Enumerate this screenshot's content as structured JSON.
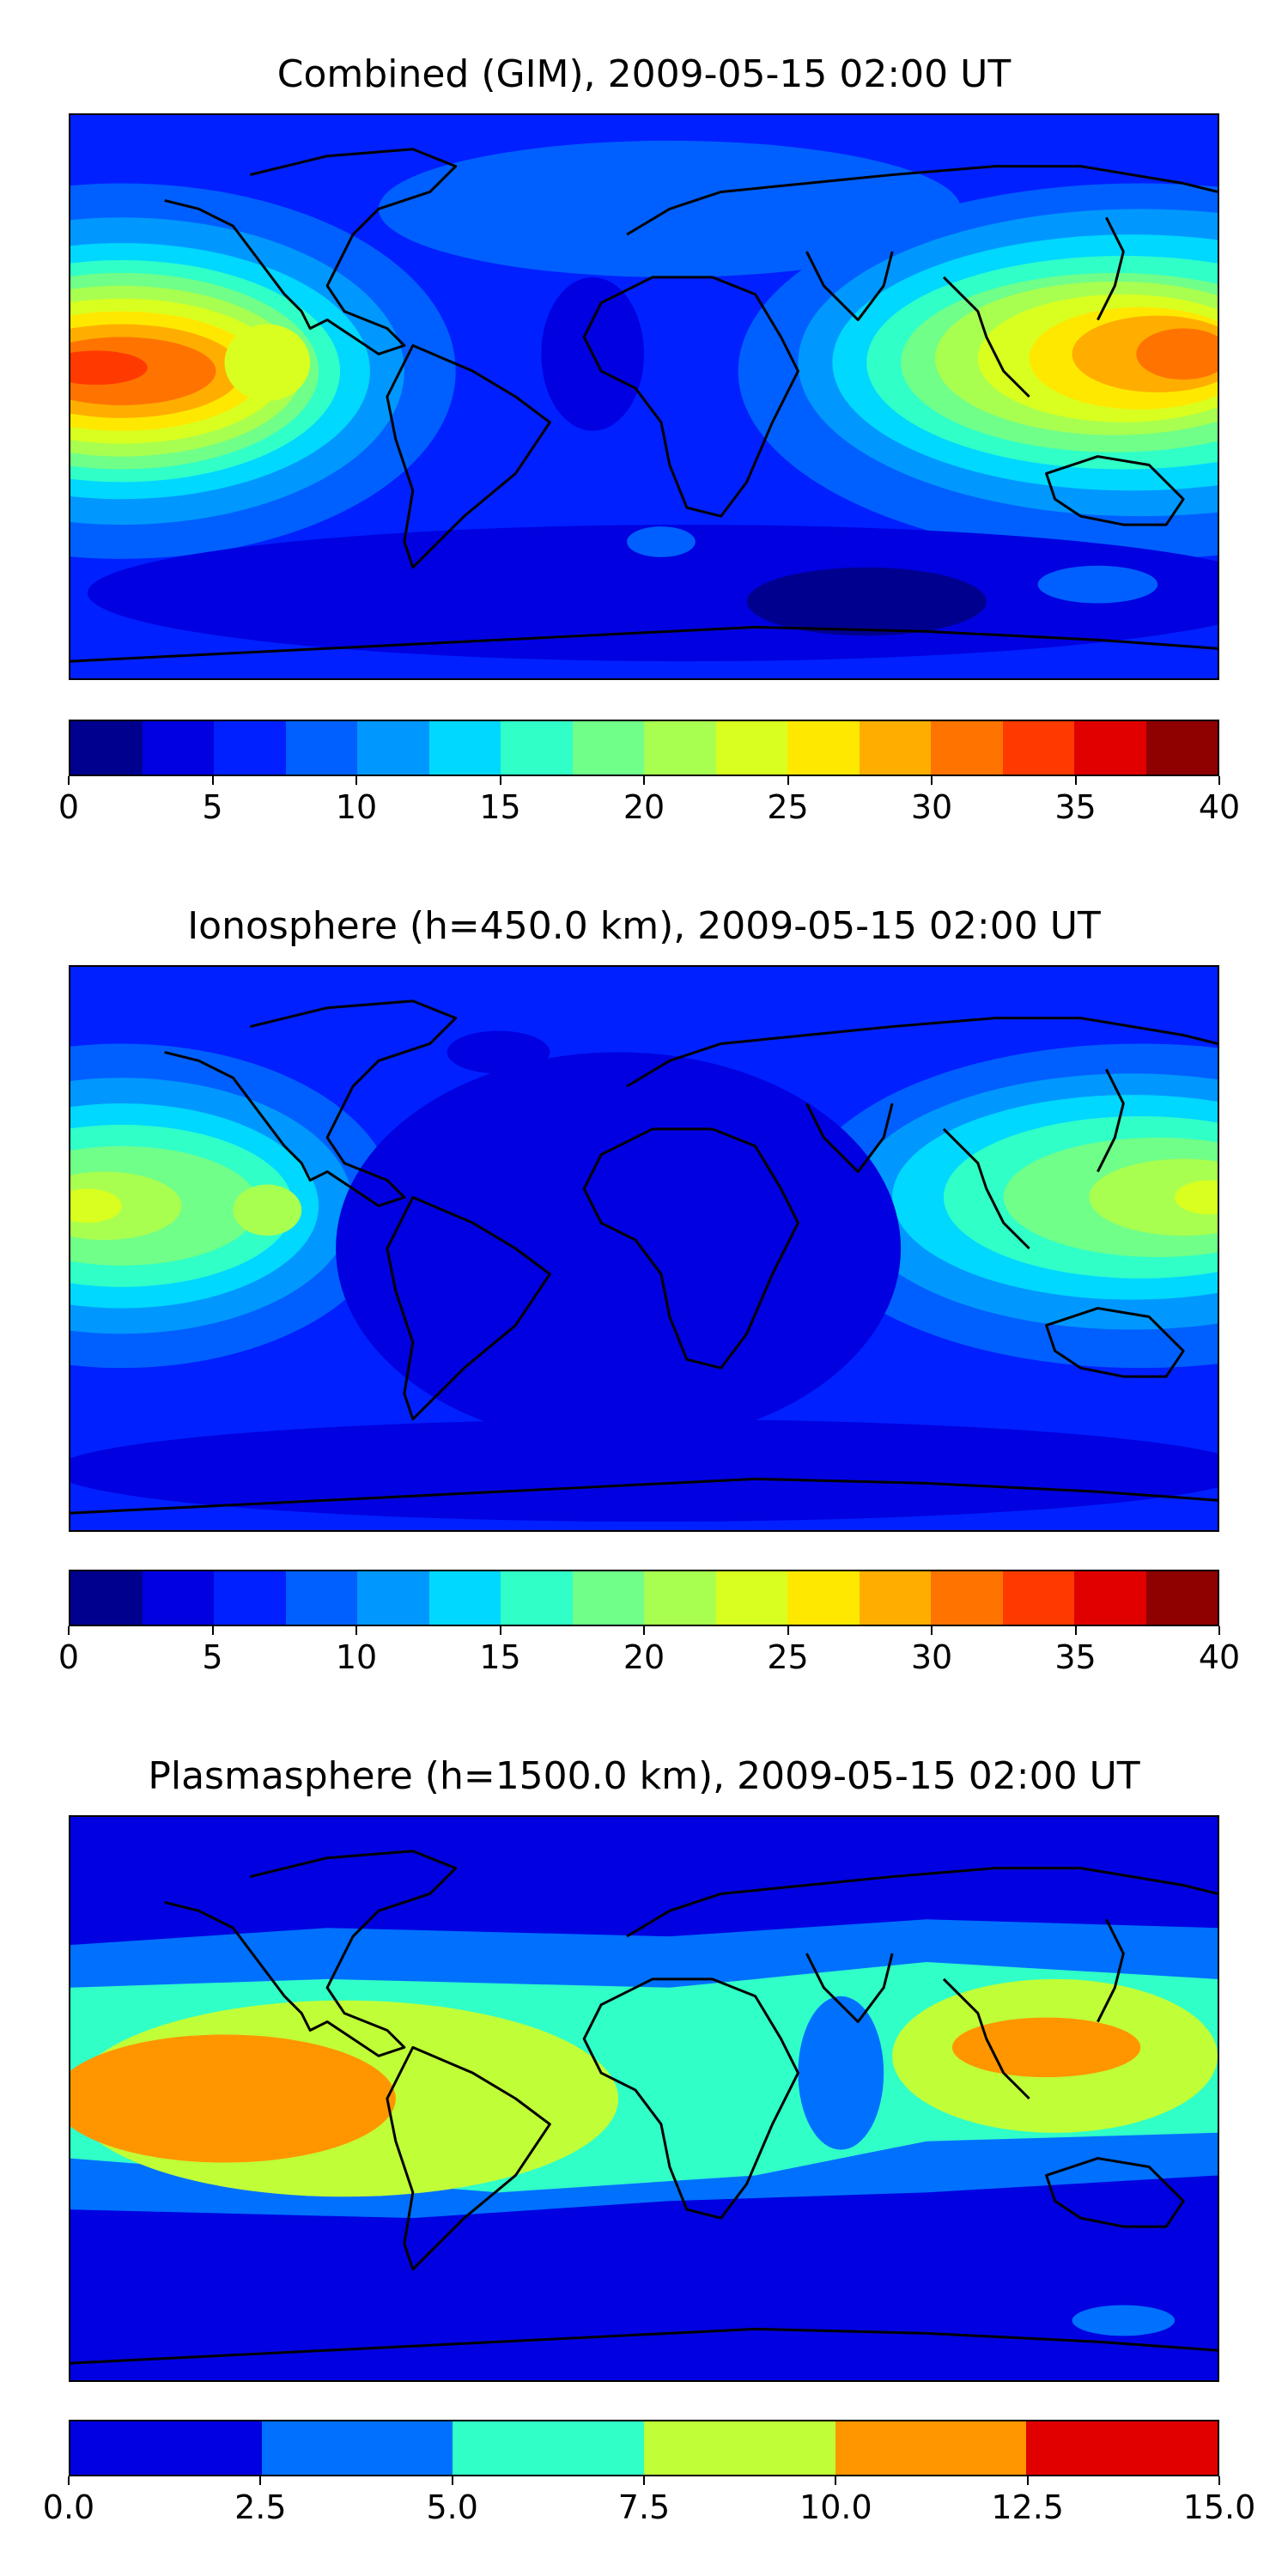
{
  "panels": [
    {
      "id": "combined",
      "title": "Combined (GIM), 2009-05-15 02:00 UT",
      "colorbar": {
        "min": 0,
        "max": 40,
        "step": 2.5,
        "colors": [
          "#00008f",
          "#0000e0",
          "#0020ff",
          "#0060ff",
          "#0098ff",
          "#00d8ff",
          "#30ffc8",
          "#70ff88",
          "#a8ff50",
          "#d8ff20",
          "#ffe800",
          "#ffae00",
          "#ff7400",
          "#ff3a00",
          "#e00000",
          "#8f0000"
        ],
        "ticks": [
          "0",
          "5",
          "10",
          "15",
          "20",
          "25",
          "30",
          "35",
          "40"
        ]
      }
    },
    {
      "id": "ionosphere",
      "title": "Ionosphere  (h=450.0 km), 2009-05-15 02:00 UT",
      "colorbar": {
        "min": 0,
        "max": 40,
        "step": 2.5,
        "colors": [
          "#00008f",
          "#0000e0",
          "#0020ff",
          "#0060ff",
          "#0098ff",
          "#00d8ff",
          "#30ffc8",
          "#70ff88",
          "#a8ff50",
          "#d8ff20",
          "#ffe800",
          "#ffae00",
          "#ff7400",
          "#ff3a00",
          "#e00000",
          "#8f0000"
        ],
        "ticks": [
          "0",
          "5",
          "10",
          "15",
          "20",
          "25",
          "30",
          "35",
          "40"
        ]
      }
    },
    {
      "id": "plasmasphere",
      "title": "Plasmasphere (h=1500.0 km), 2009-05-15 02:00 UT",
      "colorbar": {
        "min": 0,
        "max": 15,
        "step": 2.5,
        "colors": [
          "#0000e0",
          "#0070ff",
          "#30ffc8",
          "#c0ff38",
          "#ff9600",
          "#e00000"
        ],
        "ticks": [
          "0.0",
          "2.5",
          "5.0",
          "7.5",
          "10.0",
          "12.5",
          "15.0"
        ]
      }
    }
  ]
}
